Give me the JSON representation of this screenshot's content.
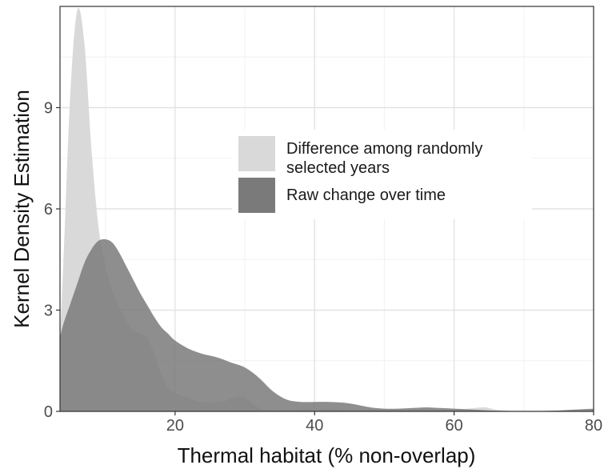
{
  "chart_data": {
    "type": "area",
    "title": "",
    "xlabel": "Thermal habitat (% non-overlap)",
    "ylabel": "Kernel Density Estimation",
    "xlim": [
      3.5,
      80
    ],
    "ylim": [
      0,
      12
    ],
    "x_ticks": [
      20,
      40,
      60,
      80
    ],
    "y_ticks": [
      0,
      3,
      6,
      9
    ],
    "grid": true,
    "legend_position": "center-right",
    "series": [
      {
        "name": "Difference among randomly selected years",
        "color": "#d9d9d9",
        "x": [
          3.5,
          4,
          5,
          6,
          7,
          8,
          9,
          10,
          11,
          12,
          13,
          14,
          15,
          16,
          17,
          18,
          19,
          20,
          21,
          22,
          23,
          24,
          25,
          26,
          27,
          28,
          29,
          30,
          31,
          32,
          33,
          34,
          35,
          40,
          45,
          50,
          55,
          60,
          62,
          64,
          65,
          66,
          68,
          70,
          75,
          80
        ],
        "y": [
          2.2,
          4.5,
          9.5,
          11.9,
          10.9,
          7.8,
          5.5,
          4.3,
          3.6,
          3.1,
          2.7,
          2.4,
          2.3,
          2.2,
          1.7,
          1.1,
          0.7,
          0.55,
          0.45,
          0.4,
          0.3,
          0.28,
          0.27,
          0.28,
          0.3,
          0.38,
          0.45,
          0.4,
          0.25,
          0.1,
          0.04,
          0.03,
          0.03,
          0.06,
          0.05,
          0.04,
          0.05,
          0.05,
          0.08,
          0.12,
          0.1,
          0.05,
          0.02,
          0.01,
          0.01,
          0.0
        ]
      },
      {
        "name": "Raw change over time",
        "color": "#7a7a7a",
        "x": [
          3.5,
          4,
          5,
          6,
          7,
          8,
          9,
          10,
          11,
          12,
          13,
          14,
          15,
          16,
          17,
          18,
          19,
          20,
          22,
          24,
          26,
          28,
          30,
          32,
          34,
          36,
          38,
          40,
          42,
          44,
          46,
          48,
          50,
          52,
          54,
          56,
          58,
          60,
          62,
          64,
          66,
          68,
          70,
          72,
          74,
          76,
          78,
          80
        ],
        "y": [
          2.2,
          2.6,
          3.2,
          3.8,
          4.4,
          4.8,
          5.05,
          5.1,
          5.0,
          4.7,
          4.3,
          3.9,
          3.5,
          3.15,
          2.8,
          2.5,
          2.3,
          2.1,
          1.85,
          1.7,
          1.6,
          1.45,
          1.3,
          1.0,
          0.6,
          0.35,
          0.28,
          0.28,
          0.28,
          0.26,
          0.2,
          0.12,
          0.08,
          0.08,
          0.1,
          0.12,
          0.1,
          0.08,
          0.06,
          0.04,
          0.02,
          0.01,
          0.01,
          0.01,
          0.02,
          0.04,
          0.06,
          0.08
        ]
      }
    ]
  }
}
